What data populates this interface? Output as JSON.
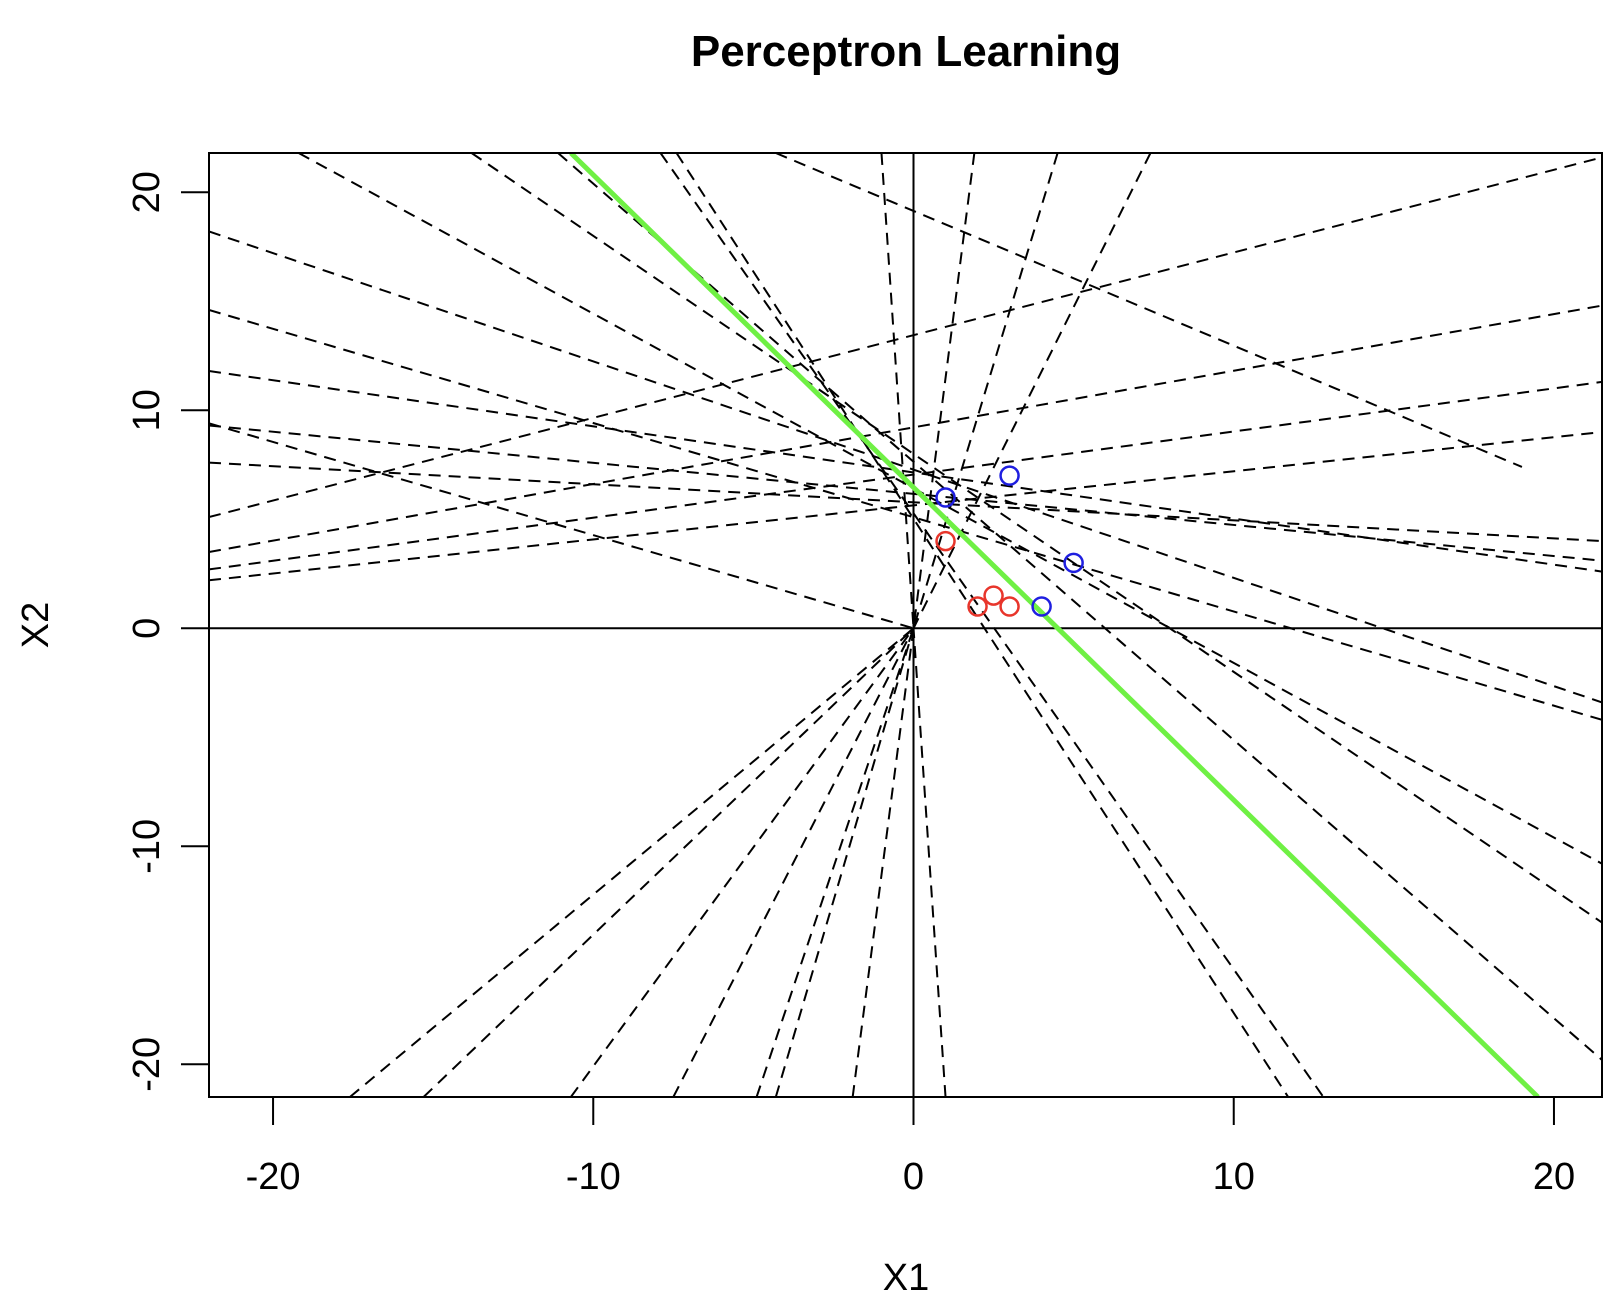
{
  "chart_data": {
    "type": "scatter",
    "title": "Perceptron Learning",
    "xlabel": "X1",
    "ylabel": "X2",
    "xlim": [
      -22.0,
      21.5
    ],
    "ylim": [
      -21.5,
      21.8
    ],
    "x_ticks": [
      -20,
      -10,
      0,
      10,
      20
    ],
    "y_ticks": [
      -20,
      -10,
      0,
      10,
      20
    ],
    "x_tick_labels": [
      "-20",
      "-10",
      "0",
      "10",
      "20"
    ],
    "y_tick_labels": [
      "-20",
      "-10",
      "0",
      "10",
      "20"
    ],
    "reference_lines": {
      "horizontal_y": 0,
      "vertical_x": 0,
      "color": "#000000"
    },
    "points": [
      {
        "x": 1.0,
        "y": 4.0,
        "class": "red"
      },
      {
        "x": 2.0,
        "y": 1.0,
        "class": "red"
      },
      {
        "x": 2.5,
        "y": 1.5,
        "class": "red"
      },
      {
        "x": 3.0,
        "y": 1.0,
        "class": "red"
      },
      {
        "x": 1.0,
        "y": 6.0,
        "class": "blue"
      },
      {
        "x": 3.0,
        "y": 7.0,
        "class": "blue"
      },
      {
        "x": 5.0,
        "y": 3.0,
        "class": "blue"
      },
      {
        "x": 4.0,
        "y": 1.0,
        "class": "blue"
      }
    ],
    "class_colors": {
      "red": "#e8352b",
      "blue": "#1f1fe0"
    },
    "iteration_lines_through_origin": [
      {
        "x1": -17.6,
        "y1": -21.5,
        "x2": 0,
        "y2": 0
      },
      {
        "x1": -15.3,
        "y1": -21.5,
        "x2": 0,
        "y2": 0
      },
      {
        "x1": -10.7,
        "y1": -21.5,
        "x2": 0,
        "y2": 0
      },
      {
        "x1": -7.5,
        "y1": -21.5,
        "x2": 0,
        "y2": 0
      },
      {
        "x1": -4.9,
        "y1": -21.5,
        "x2": 0,
        "y2": 0
      },
      {
        "x1": -4.3,
        "y1": -21.5,
        "x2": 0,
        "y2": 0
      },
      {
        "x1": -1.9,
        "y1": -21.5,
        "x2": 0,
        "y2": 0
      },
      {
        "x1": 1.0,
        "y1": -21.5,
        "x2": 0,
        "y2": 0
      },
      {
        "x1": -22.0,
        "y1": 9.4,
        "x2": 0,
        "y2": 0
      },
      {
        "x1": -1.0,
        "y1": 21.8,
        "x2": 0,
        "y2": 0
      },
      {
        "x1": 1.9,
        "y1": 21.8,
        "x2": 0,
        "y2": 0
      },
      {
        "x1": 4.5,
        "y1": 21.8,
        "x2": 0,
        "y2": 0
      },
      {
        "x1": 7.4,
        "y1": 21.8,
        "x2": 0,
        "y2": 0
      }
    ],
    "iteration_lines_other": [
      {
        "x1": -22.0,
        "y1": 18.2,
        "x2": 21.5,
        "y2": -3.4
      },
      {
        "x1": -22.0,
        "y1": 14.6,
        "x2": 21.5,
        "y2": -4.2
      },
      {
        "x1": -22.0,
        "y1": 11.8,
        "x2": 21.5,
        "y2": 2.6
      },
      {
        "x1": -22.0,
        "y1": 9.3,
        "x2": 21.5,
        "y2": 3.1
      },
      {
        "x1": -22.0,
        "y1": 7.6,
        "x2": 21.5,
        "y2": 4.0
      },
      {
        "x1": -22.0,
        "y1": 5.1,
        "x2": 21.5,
        "y2": 21.6
      },
      {
        "x1": -22.0,
        "y1": 3.5,
        "x2": 21.5,
        "y2": 14.8
      },
      {
        "x1": -22.0,
        "y1": 2.7,
        "x2": 21.5,
        "y2": 11.3
      },
      {
        "x1": -22.0,
        "y1": 2.2,
        "x2": 21.5,
        "y2": 9.0
      },
      {
        "x1": -19.2,
        "y1": 21.8,
        "x2": 21.5,
        "y2": -10.8
      },
      {
        "x1": -13.8,
        "y1": 21.8,
        "x2": 21.5,
        "y2": -13.5
      },
      {
        "x1": -11.1,
        "y1": 21.8,
        "x2": 21.5,
        "y2": -19.8
      },
      {
        "x1": -7.4,
        "y1": 21.8,
        "x2": 11.7,
        "y2": -21.5
      },
      {
        "x1": -7.9,
        "y1": 21.8,
        "x2": 12.8,
        "y2": -21.5
      },
      {
        "x1": -4.3,
        "y1": 21.8,
        "x2": 19.0,
        "y2": 7.4
      }
    ],
    "final_boundary": {
      "x1": -10.7,
      "y1": 21.8,
      "x2": 19.5,
      "y2": -21.5,
      "color": "#6ff044"
    }
  }
}
